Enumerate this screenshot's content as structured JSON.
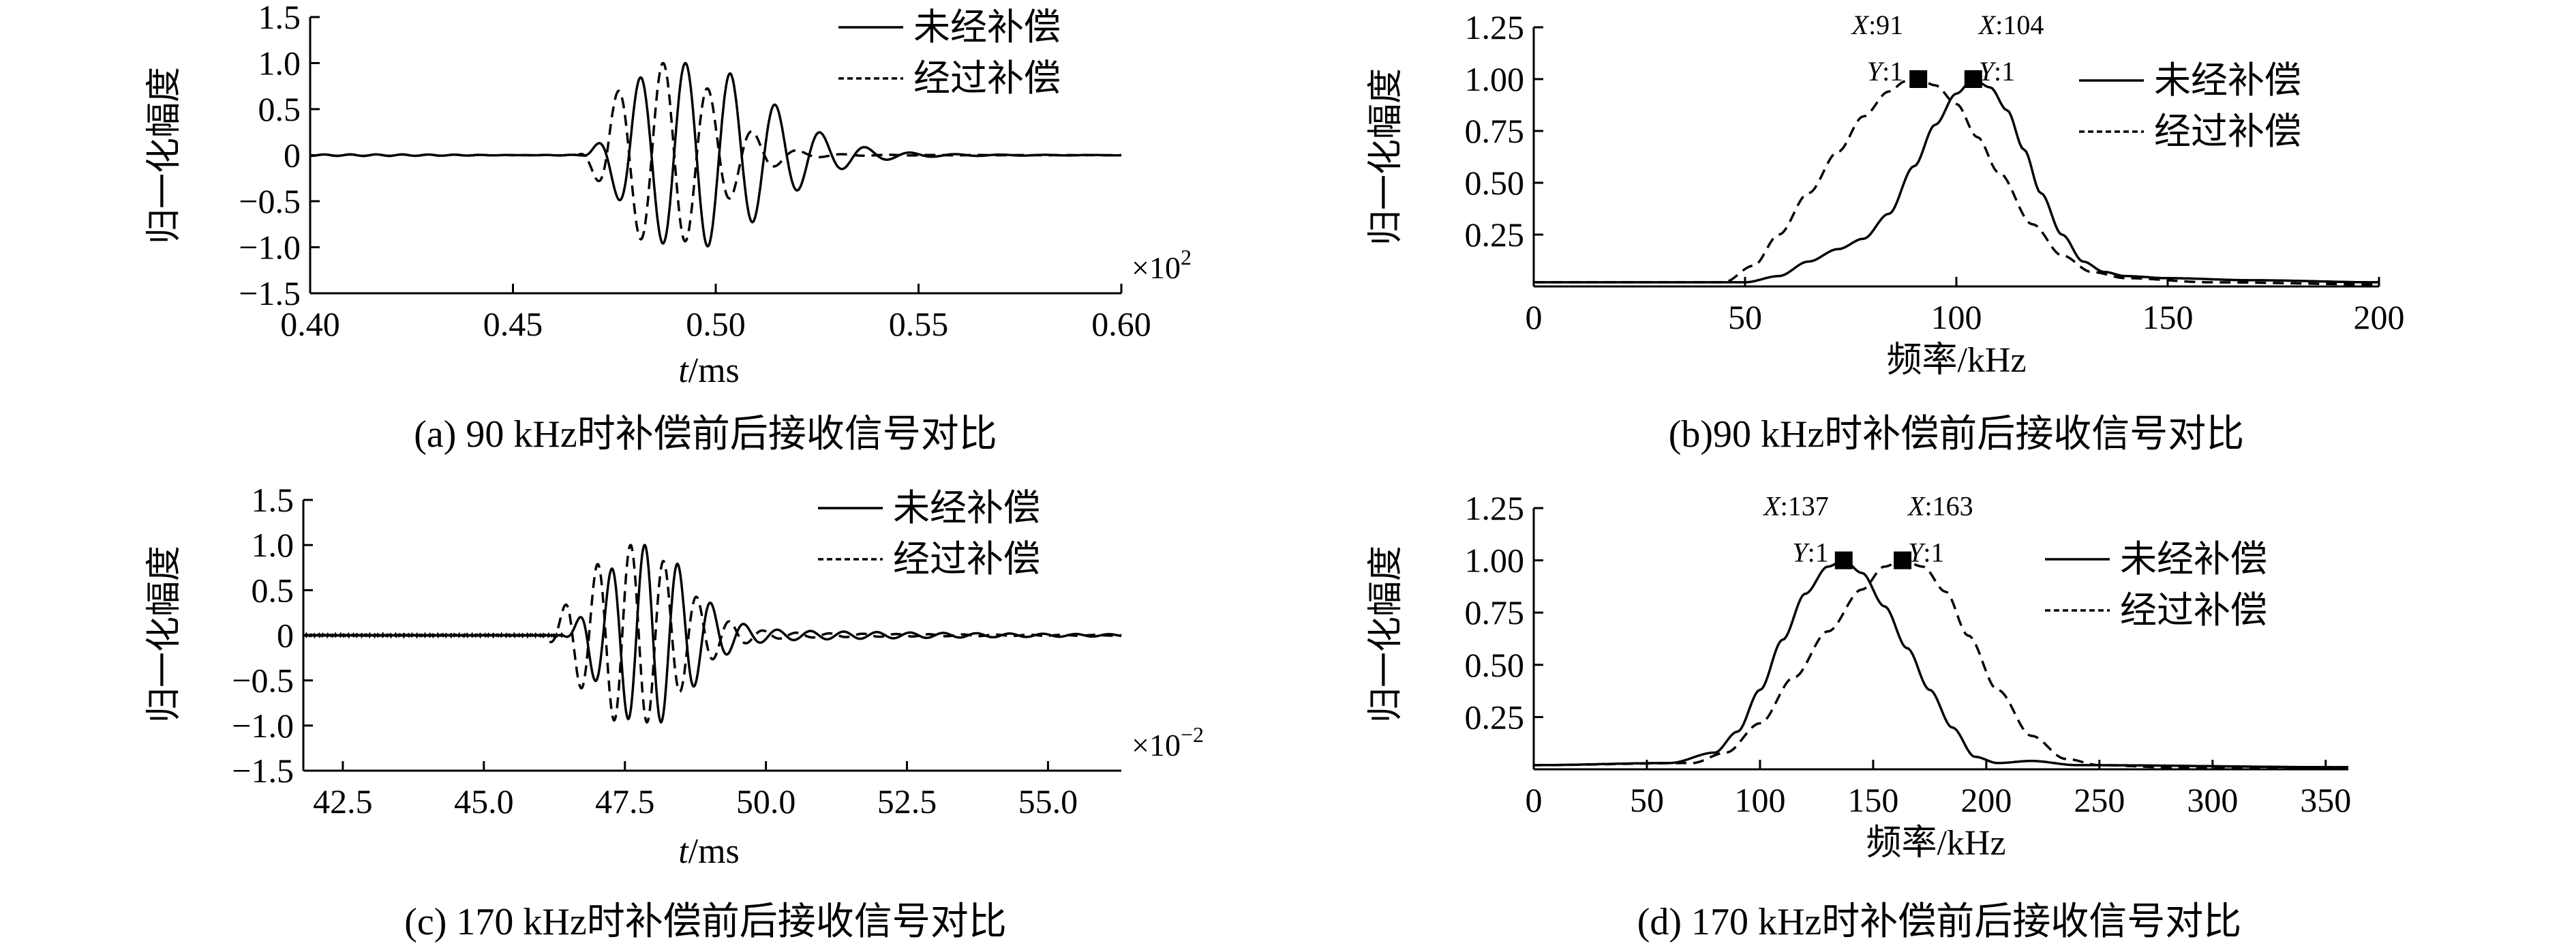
{
  "chart_data": [
    {
      "id": "a",
      "type": "line",
      "caption": "(a) 90 kHz时补偿前后接收信号对比",
      "xlabel_var": "t",
      "xlabel_unit": "/ms",
      "ylabel": "归一化幅度",
      "multiplier": "×10",
      "multiplier_exp": "2",
      "xlim": [
        0.4,
        0.6
      ],
      "ylim": [
        -1.5,
        1.5
      ],
      "xticks": [
        "0.40",
        "0.45",
        "0.50",
        "0.55",
        "0.60"
      ],
      "xtick_values": [
        0.4,
        0.45,
        0.5,
        0.55,
        0.6
      ],
      "yticks": [
        "1.5",
        "1.0",
        "0.5",
        "0",
        "−0.5",
        "−1.0",
        "−1.5"
      ],
      "ytick_values": [
        1.5,
        1.0,
        0.5,
        0,
        -0.5,
        -1.0,
        -1.5
      ],
      "legend": [
        "未经补偿",
        "经过补偿"
      ],
      "signal": {
        "x_start": 0.4,
        "x_end": 0.6,
        "s1": {
          "onset": 0.468,
          "t0": 0.4925,
          "freq": 90,
          "width": 0.019,
          "tail": 0.13,
          "tail_decay": 0.025
        },
        "s2": {
          "onset": 0.466,
          "t0": 0.487,
          "freq": 90,
          "width": 0.013,
          "tail": 0.07,
          "tail_decay": 0.02
        }
      }
    },
    {
      "id": "b",
      "type": "line",
      "caption": "(b)90 kHz时补偿前后接收信号对比",
      "xlabel": "频率/kHz",
      "ylabel": "归一化幅度",
      "xlim": [
        0,
        200
      ],
      "ylim": [
        0,
        1.25
      ],
      "xticks": [
        "0",
        "50",
        "100",
        "150",
        "200"
      ],
      "xtick_values": [
        0,
        50,
        100,
        150,
        200
      ],
      "yticks": [
        "1.25",
        "1.00",
        "0.75",
        "0.50",
        "0.25"
      ],
      "ytick_values": [
        1.25,
        1.0,
        0.75,
        0.5,
        0.25
      ],
      "legend": [
        "未经补偿",
        "经过补偿"
      ],
      "series": [
        {
          "name": "未经补偿",
          "style": "solid",
          "x": [
            0,
            50,
            58,
            65,
            72,
            78,
            84,
            90,
            95,
            100,
            104,
            108,
            112,
            116,
            120,
            125,
            130,
            135,
            140,
            150,
            170,
            200
          ],
          "y": [
            0.02,
            0.02,
            0.05,
            0.12,
            0.18,
            0.23,
            0.35,
            0.58,
            0.78,
            0.93,
            1.0,
            0.96,
            0.85,
            0.66,
            0.45,
            0.25,
            0.12,
            0.07,
            0.05,
            0.04,
            0.03,
            0.02
          ]
        },
        {
          "name": "经过补偿",
          "style": "dashed",
          "x": [
            0,
            45,
            52,
            58,
            65,
            72,
            78,
            84,
            88,
            91,
            95,
            100,
            105,
            110,
            118,
            125,
            132,
            140,
            160,
            200
          ],
          "y": [
            0.02,
            0.02,
            0.1,
            0.25,
            0.45,
            0.65,
            0.82,
            0.94,
            0.99,
            1.0,
            0.97,
            0.88,
            0.72,
            0.55,
            0.3,
            0.15,
            0.07,
            0.04,
            0.02,
            0.01
          ]
        }
      ],
      "markers": [
        {
          "x": 91,
          "y": 1,
          "label_x": "X:91",
          "label_y": "Y:1"
        },
        {
          "x": 104,
          "y": 1,
          "label_x": "X:104",
          "label_y": "Y:1"
        }
      ]
    },
    {
      "id": "c",
      "type": "line",
      "caption": "(c)  170 kHz时补偿前后接收信号对比",
      "xlabel_var": "t",
      "xlabel_unit": "/ms",
      "ylabel": "归一化幅度",
      "multiplier": "×10",
      "multiplier_exp": "−2",
      "xlim": [
        41.8,
        56.3
      ],
      "ylim": [
        -1.5,
        1.5
      ],
      "xticks": [
        "42.5",
        "45.0",
        "47.5",
        "50.0",
        "52.5",
        "55.0"
      ],
      "xtick_values": [
        42.5,
        45.0,
        47.5,
        50.0,
        52.5,
        55.0
      ],
      "yticks": [
        "1.5",
        "1.0",
        "0.5",
        "0",
        "−0.5",
        "−1.0",
        "−1.5"
      ],
      "ytick_values": [
        1.5,
        1.0,
        0.5,
        0,
        -0.5,
        -1.0,
        -1.5
      ],
      "legend": [
        "未经补偿",
        "经过补偿"
      ],
      "signal": {
        "x_start": 41.8,
        "x_end": 56.3,
        "s1": {
          "onset": 46.4,
          "t0": 47.85,
          "freq": 1.7,
          "width": 0.75,
          "tail": 0.1,
          "tail_decay": 4.0
        },
        "s2": {
          "onset": 46.0,
          "t0": 47.6,
          "freq": 1.7,
          "width": 0.85,
          "tail": 0.07,
          "tail_decay": 3.0
        }
      }
    },
    {
      "id": "d",
      "type": "line",
      "caption": "(d) 170 kHz时补偿前后接收信号对比",
      "xlabel": "频率/kHz",
      "ylabel": "归一化幅度",
      "xlim": [
        0,
        360
      ],
      "ylim": [
        0,
        1.25
      ],
      "xticks": [
        "0",
        "50",
        "100",
        "150",
        "200",
        "250",
        "300",
        "350"
      ],
      "xtick_values": [
        0,
        50,
        100,
        150,
        200,
        250,
        300,
        350
      ],
      "yticks": [
        "1.25",
        "1.00",
        "0.75",
        "0.50",
        "0.25"
      ],
      "ytick_values": [
        1.25,
        1.0,
        0.75,
        0.5,
        0.25
      ],
      "legend": [
        "未经补偿",
        "经过补偿"
      ],
      "series": [
        {
          "name": "未经补偿",
          "style": "solid",
          "x": [
            0,
            60,
            80,
            90,
            100,
            110,
            120,
            130,
            137,
            145,
            155,
            165,
            175,
            185,
            195,
            205,
            220,
            240,
            360
          ],
          "y": [
            0.02,
            0.03,
            0.08,
            0.18,
            0.38,
            0.62,
            0.84,
            0.97,
            1.0,
            0.94,
            0.78,
            0.58,
            0.38,
            0.2,
            0.06,
            0.03,
            0.04,
            0.02,
            0.01
          ]
        },
        {
          "name": "经过补偿",
          "style": "dashed",
          "x": [
            0,
            70,
            85,
            100,
            115,
            130,
            145,
            155,
            163,
            172,
            182,
            192,
            205,
            220,
            235,
            250,
            280,
            360
          ],
          "y": [
            0.02,
            0.03,
            0.08,
            0.22,
            0.44,
            0.66,
            0.86,
            0.97,
            1.0,
            0.97,
            0.85,
            0.64,
            0.38,
            0.16,
            0.05,
            0.02,
            0.01,
            0.01
          ]
        }
      ],
      "markers": [
        {
          "x": 137,
          "y": 1,
          "label_x": "X:137",
          "label_y": "Y:1"
        },
        {
          "x": 163,
          "y": 1,
          "label_x": "X:163",
          "label_y": "Y:1"
        }
      ]
    }
  ]
}
